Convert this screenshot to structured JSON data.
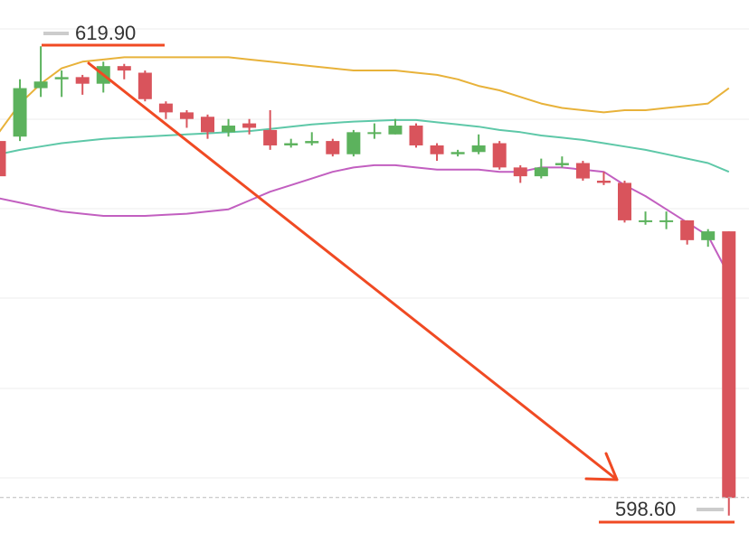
{
  "chart_data": {
    "type": "candlestick",
    "title": "",
    "xlabel": "",
    "ylabel": "",
    "grid": true,
    "ylim": [
      597.4,
      622.0
    ],
    "annotations": {
      "high_label": "619.90",
      "low_label": "598.60"
    },
    "colors": {
      "up": "#5cb25d",
      "down": "#d9545c",
      "upper_band": "#e8b23a",
      "middle_band": "#5ec8a8",
      "lower_band": "#c25fc0",
      "trend_arrow": "#f04a23",
      "marker_line": "#f04a23",
      "grid": "#eeeeee"
    },
    "candles": [
      {
        "o": 615.6,
        "h": 616.6,
        "l": 612.6,
        "c": 614.0
      },
      {
        "o": 615.8,
        "h": 618.4,
        "l": 615.6,
        "c": 618.0
      },
      {
        "o": 618.0,
        "h": 619.9,
        "l": 617.6,
        "c": 618.3
      },
      {
        "o": 618.4,
        "h": 618.8,
        "l": 617.6,
        "c": 618.5
      },
      {
        "o": 618.5,
        "h": 618.6,
        "l": 617.7,
        "c": 618.2
      },
      {
        "o": 618.2,
        "h": 619.2,
        "l": 617.8,
        "c": 619.0
      },
      {
        "o": 619.0,
        "h": 619.1,
        "l": 618.4,
        "c": 618.8
      },
      {
        "o": 618.7,
        "h": 618.8,
        "l": 617.4,
        "c": 617.5
      },
      {
        "o": 617.3,
        "h": 617.4,
        "l": 616.6,
        "c": 616.9
      },
      {
        "o": 616.9,
        "h": 617.0,
        "l": 616.2,
        "c": 616.6
      },
      {
        "o": 616.7,
        "h": 616.8,
        "l": 615.7,
        "c": 616.0
      },
      {
        "o": 616.0,
        "h": 616.6,
        "l": 615.8,
        "c": 616.3
      },
      {
        "o": 616.4,
        "h": 616.6,
        "l": 615.9,
        "c": 616.2
      },
      {
        "o": 616.1,
        "h": 617.0,
        "l": 615.2,
        "c": 615.4
      },
      {
        "o": 615.4,
        "h": 615.7,
        "l": 615.3,
        "c": 615.5
      },
      {
        "o": 615.5,
        "h": 616.0,
        "l": 615.4,
        "c": 615.6
      },
      {
        "o": 615.6,
        "h": 615.7,
        "l": 614.9,
        "c": 615.0
      },
      {
        "o": 615.0,
        "h": 616.1,
        "l": 614.9,
        "c": 616.0
      },
      {
        "o": 616.0,
        "h": 616.4,
        "l": 615.7,
        "c": 616.0
      },
      {
        "o": 615.9,
        "h": 616.6,
        "l": 615.9,
        "c": 616.3
      },
      {
        "o": 616.3,
        "h": 616.4,
        "l": 615.3,
        "c": 615.4
      },
      {
        "o": 615.4,
        "h": 615.5,
        "l": 614.7,
        "c": 615.0
      },
      {
        "o": 615.0,
        "h": 615.2,
        "l": 614.9,
        "c": 615.1
      },
      {
        "o": 615.1,
        "h": 615.9,
        "l": 615.0,
        "c": 615.4
      },
      {
        "o": 615.5,
        "h": 615.6,
        "l": 614.3,
        "c": 614.4
      },
      {
        "o": 614.4,
        "h": 614.5,
        "l": 613.7,
        "c": 614.0
      },
      {
        "o": 614.0,
        "h": 614.8,
        "l": 613.9,
        "c": 614.4
      },
      {
        "o": 614.5,
        "h": 614.9,
        "l": 614.4,
        "c": 614.6
      },
      {
        "o": 614.6,
        "h": 614.7,
        "l": 613.8,
        "c": 613.9
      },
      {
        "o": 613.8,
        "h": 614.2,
        "l": 613.6,
        "c": 613.7
      },
      {
        "o": 613.7,
        "h": 613.8,
        "l": 611.9,
        "c": 612.0
      },
      {
        "o": 612.0,
        "h": 612.4,
        "l": 611.8,
        "c": 612.0
      },
      {
        "o": 612.0,
        "h": 612.4,
        "l": 611.6,
        "c": 612.0
      },
      {
        "o": 612.0,
        "h": 612.0,
        "l": 610.9,
        "c": 611.1
      },
      {
        "o": 611.1,
        "h": 611.6,
        "l": 610.8,
        "c": 611.5
      },
      {
        "o": 611.5,
        "h": 611.5,
        "l": 598.6,
        "c": 599.4
      }
    ],
    "upper_band": [
      616.0,
      617.3,
      618.2,
      618.9,
      619.2,
      619.3,
      619.4,
      619.4,
      619.4,
      619.4,
      619.4,
      619.4,
      619.3,
      619.2,
      619.1,
      619.0,
      618.9,
      618.8,
      618.8,
      618.8,
      618.7,
      618.6,
      618.4,
      618.1,
      617.9,
      617.6,
      617.3,
      617.1,
      617.0,
      616.9,
      617.0,
      617.0,
      617.1,
      617.2,
      617.3,
      618.0
    ],
    "middle_band": [
      615.0,
      615.2,
      615.35,
      615.5,
      615.6,
      615.7,
      615.75,
      615.8,
      615.85,
      615.9,
      615.95,
      616.0,
      616.05,
      616.15,
      616.25,
      616.35,
      616.42,
      616.48,
      616.52,
      616.55,
      616.55,
      616.45,
      616.35,
      616.25,
      616.1,
      616.0,
      615.85,
      615.75,
      615.65,
      615.5,
      615.35,
      615.2,
      615.0,
      614.8,
      614.6,
      614.2
    ],
    "lower_band": [
      613.0,
      612.8,
      612.6,
      612.4,
      612.3,
      612.2,
      612.2,
      612.2,
      612.25,
      612.3,
      612.4,
      612.5,
      612.9,
      613.3,
      613.6,
      613.9,
      614.2,
      614.4,
      614.5,
      614.5,
      614.4,
      614.3,
      614.3,
      614.3,
      614.2,
      614.2,
      614.4,
      614.4,
      614.3,
      614.2,
      613.6,
      613.1,
      612.5,
      611.9,
      611.3,
      609.5
    ]
  }
}
